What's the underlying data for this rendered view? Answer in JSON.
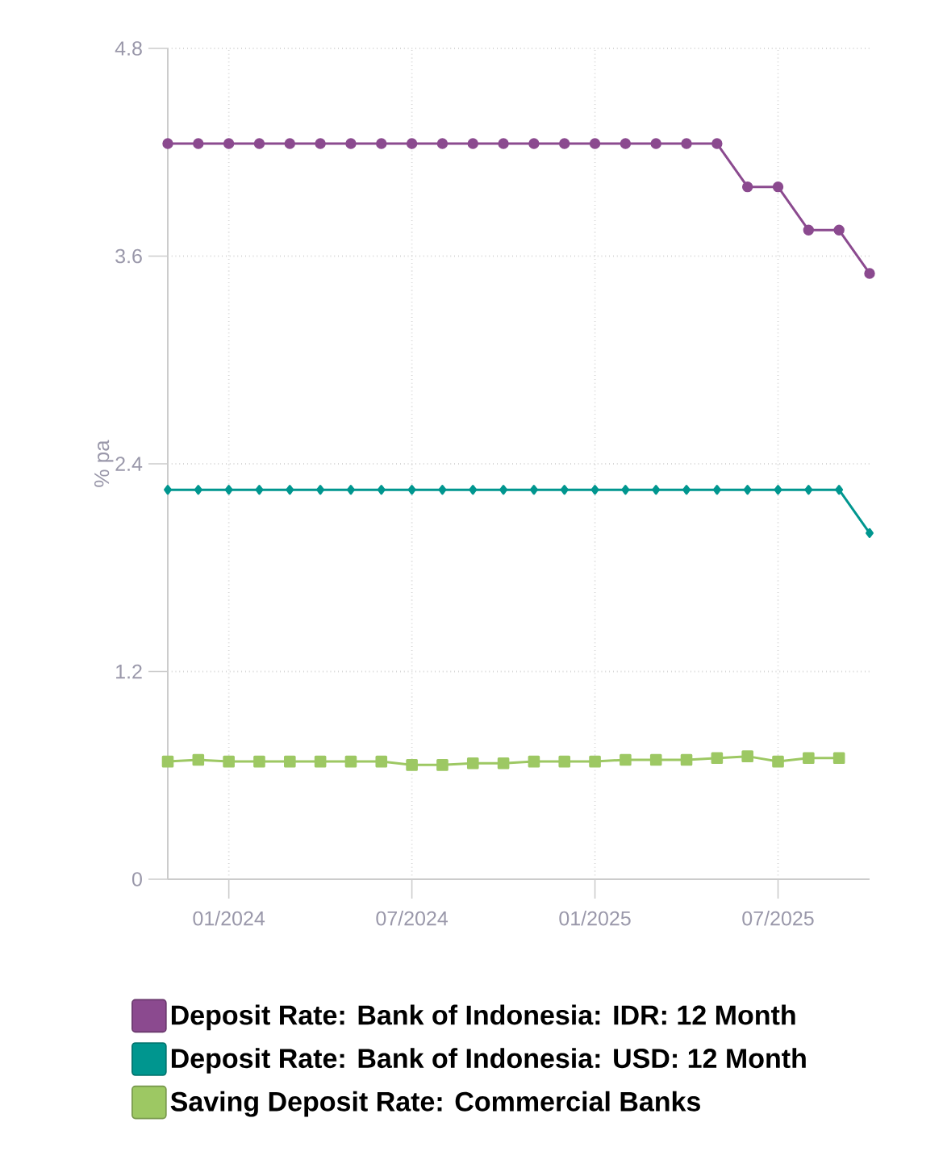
{
  "chart_data": {
    "type": "line",
    "ylabel": "% pa",
    "x": [
      "2023-11",
      "2023-12",
      "2024-01",
      "2024-02",
      "2024-03",
      "2024-04",
      "2024-05",
      "2024-06",
      "2024-07",
      "2024-08",
      "2024-09",
      "2024-10",
      "2024-11",
      "2024-12",
      "2025-01",
      "2025-02",
      "2025-03",
      "2025-04",
      "2025-05",
      "2025-06",
      "2025-07",
      "2025-08",
      "2025-09",
      "2025-10"
    ],
    "series": [
      {
        "name": "Deposit Rate: Bank of Indonesia: IDR: 12 Month",
        "color": "#8b4a8f",
        "marker": "circle",
        "values": [
          4.25,
          4.25,
          4.25,
          4.25,
          4.25,
          4.25,
          4.25,
          4.25,
          4.25,
          4.25,
          4.25,
          4.25,
          4.25,
          4.25,
          4.25,
          4.25,
          4.25,
          4.25,
          4.25,
          4.0,
          4.0,
          3.75,
          3.75,
          3.5
        ]
      },
      {
        "name": "Deposit Rate: Bank of Indonesia: USD: 12 Month",
        "color": "#00968f",
        "marker": "diamond",
        "values": [
          2.25,
          2.25,
          2.25,
          2.25,
          2.25,
          2.25,
          2.25,
          2.25,
          2.25,
          2.25,
          2.25,
          2.25,
          2.25,
          2.25,
          2.25,
          2.25,
          2.25,
          2.25,
          2.25,
          2.25,
          2.25,
          2.25,
          2.25,
          2.0
        ]
      },
      {
        "name": "Saving Deposit Rate: Commercial Banks",
        "color": "#9dc863",
        "marker": "square",
        "values": [
          0.68,
          0.69,
          0.68,
          0.68,
          0.68,
          0.68,
          0.68,
          0.68,
          0.66,
          0.66,
          0.67,
          0.67,
          0.68,
          0.68,
          0.68,
          0.69,
          0.69,
          0.69,
          0.7,
          0.71,
          0.68,
          0.7,
          0.7,
          null
        ]
      }
    ],
    "xlim": [
      "2023-11",
      "2025-10"
    ],
    "xticks": [
      {
        "value": "2024-01",
        "label": "01/2024"
      },
      {
        "value": "2024-07",
        "label": "07/2024"
      },
      {
        "value": "2025-01",
        "label": "01/2025"
      },
      {
        "value": "2025-07",
        "label": "07/2025"
      }
    ],
    "ylim": [
      0,
      4.8
    ],
    "yticks": [
      0,
      1.2,
      2.4,
      3.6,
      4.8
    ],
    "grid": true,
    "legend": "bottom",
    "line_style": "solid"
  }
}
